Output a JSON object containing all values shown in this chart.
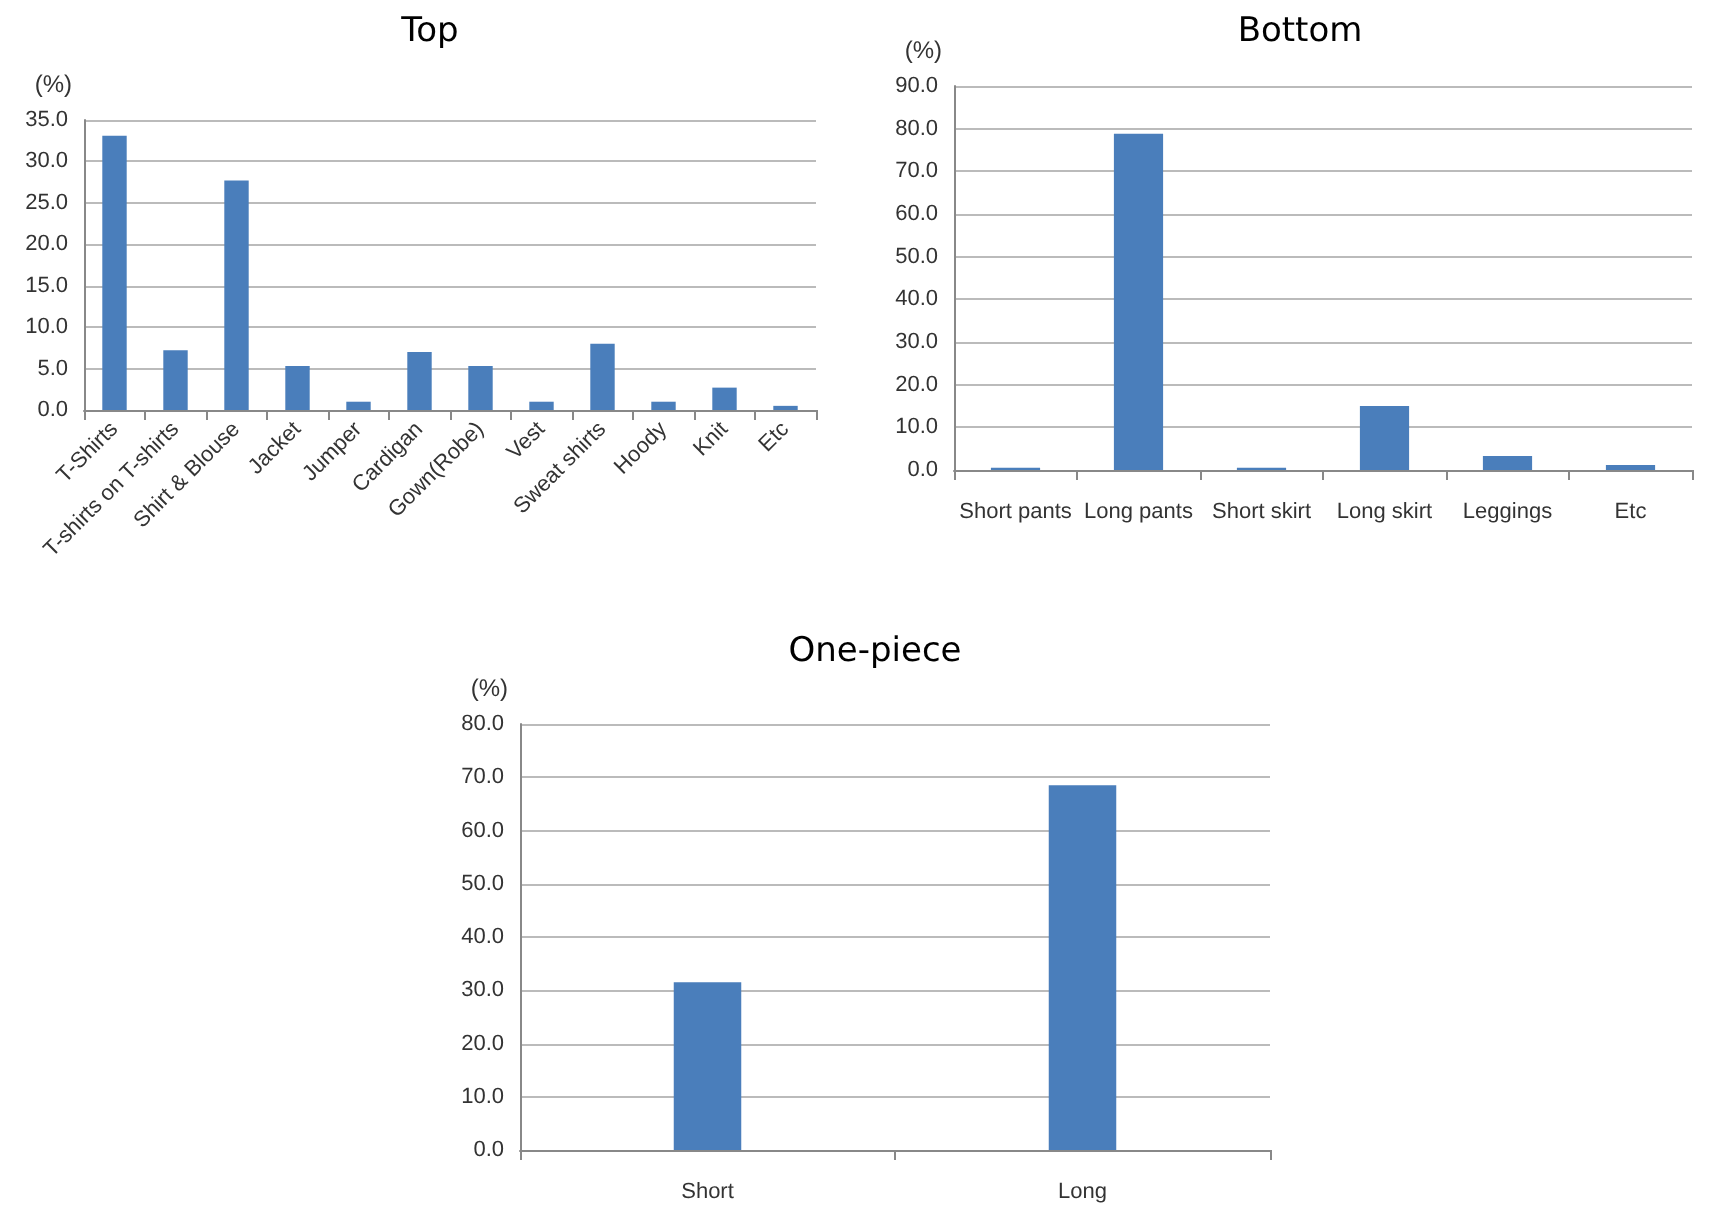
{
  "chart_data": [
    {
      "type": "bar",
      "title": "Top",
      "ylabel": "(%)",
      "categories": [
        "T-Shirts",
        "T-shirts on T-shirts",
        "Shirt & Blouse",
        "Jacket",
        "Jumper",
        "Cardigan",
        "Gown(Robe)",
        "Vest",
        "Sweat shirts",
        "Hoody",
        "Knit",
        "Etc"
      ],
      "series": [
        {
          "color": "#4a7ebb",
          "values": [
            33.1,
            7.2,
            27.7,
            5.3,
            1.0,
            7.0,
            5.3,
            1.0,
            8.0,
            1.0,
            2.7,
            0.5
          ]
        }
      ],
      "ylim": [
        0,
        35
      ],
      "yticks": [
        {
          "value": 0,
          "label": "0.0"
        },
        {
          "value": 5,
          "label": "5.0"
        },
        {
          "value": 10,
          "label": "10.0"
        },
        {
          "value": 15,
          "label": "15.0"
        },
        {
          "value": 20,
          "label": "20.0"
        },
        {
          "value": 25,
          "label": "25.0"
        },
        {
          "value": 30,
          "label": "30.0"
        },
        {
          "value": 35,
          "label": "35.0"
        }
      ],
      "grid": "y"
    },
    {
      "type": "bar",
      "title": "Bottom",
      "ylabel": "(%)",
      "categories": [
        "Short pants",
        "Long pants",
        "Short skirt",
        "Long skirt",
        "Leggings",
        "Etc"
      ],
      "series": [
        {
          "color": "#4a7ebb",
          "values": [
            0.5,
            78.8,
            0.5,
            15.0,
            3.3,
            1.2
          ]
        }
      ],
      "ylim": [
        0,
        90
      ],
      "yticks": [
        {
          "value": 0,
          "label": "0.0"
        },
        {
          "value": 10,
          "label": "10.0"
        },
        {
          "value": 20,
          "label": "20.0"
        },
        {
          "value": 30,
          "label": "30.0"
        },
        {
          "value": 40,
          "label": "40.0"
        },
        {
          "value": 50,
          "label": "50.0"
        },
        {
          "value": 60,
          "label": "60.0"
        },
        {
          "value": 70,
          "label": "70.0"
        },
        {
          "value": 80,
          "label": "80.0"
        },
        {
          "value": 90,
          "label": "90.0"
        }
      ],
      "grid": "y"
    },
    {
      "type": "bar",
      "title": "One-piece",
      "ylabel": "(%)",
      "categories": [
        "Short",
        "Long"
      ],
      "series": [
        {
          "color": "#4a7ebb",
          "values": [
            31.5,
            68.5
          ]
        }
      ],
      "ylim": [
        0,
        80
      ],
      "yticks": [
        {
          "value": 0,
          "label": "0.0"
        },
        {
          "value": 10,
          "label": "10.0"
        },
        {
          "value": 20,
          "label": "20.0"
        },
        {
          "value": 30,
          "label": "30.0"
        },
        {
          "value": 40,
          "label": "40.0"
        },
        {
          "value": 50,
          "label": "50.0"
        },
        {
          "value": 60,
          "label": "60.0"
        },
        {
          "value": 70,
          "label": "70.0"
        },
        {
          "value": 80,
          "label": "80.0"
        }
      ],
      "grid": "y"
    }
  ]
}
